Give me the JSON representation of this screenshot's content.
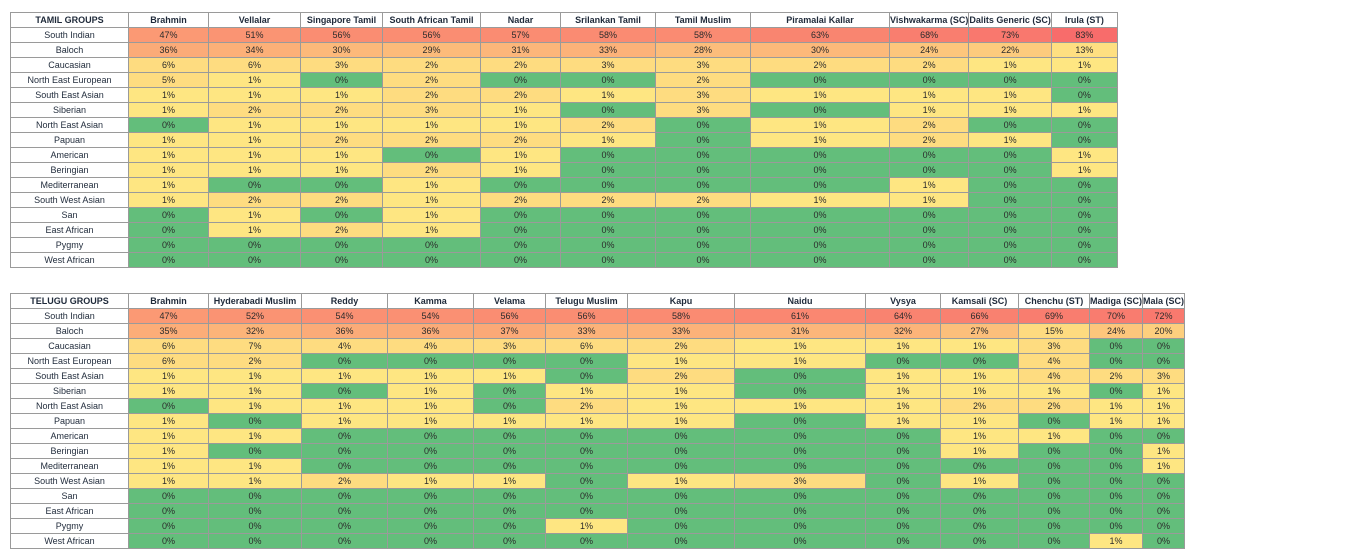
{
  "tamil": {
    "title": "TAMIL GROUPS",
    "columns": [
      "Brahmin",
      "Vellalar",
      "Singapore Tamil",
      "South African Tamil",
      "Nadar",
      "Srilankan Tamil",
      "Tamil Muslim",
      "Piramalai Kallar",
      "Vishwakarma (SC)",
      "Dalits Generic (SC)",
      "Irula (ST)"
    ],
    "rows": [
      {
        "label": "South Indian",
        "values": [
          "47%",
          "51%",
          "56%",
          "56%",
          "57%",
          "58%",
          "58%",
          "63%",
          "68%",
          "73%",
          "83%"
        ]
      },
      {
        "label": "Baloch",
        "values": [
          "36%",
          "34%",
          "30%",
          "29%",
          "31%",
          "33%",
          "28%",
          "30%",
          "24%",
          "22%",
          "13%"
        ]
      },
      {
        "label": "Caucasian",
        "values": [
          "6%",
          "6%",
          "3%",
          "2%",
          "2%",
          "3%",
          "3%",
          "2%",
          "2%",
          "1%",
          "1%"
        ]
      },
      {
        "label": "North East European",
        "values": [
          "5%",
          "1%",
          "0%",
          "2%",
          "0%",
          "0%",
          "2%",
          "0%",
          "0%",
          "0%",
          "0%"
        ]
      },
      {
        "label": "South East Asian",
        "values": [
          "1%",
          "1%",
          "1%",
          "2%",
          "2%",
          "1%",
          "3%",
          "1%",
          "1%",
          "1%",
          "0%"
        ]
      },
      {
        "label": "Siberian",
        "values": [
          "1%",
          "2%",
          "2%",
          "3%",
          "1%",
          "0%",
          "3%",
          "0%",
          "1%",
          "1%",
          "1%"
        ]
      },
      {
        "label": "North East Asian",
        "values": [
          "0%",
          "1%",
          "1%",
          "1%",
          "1%",
          "2%",
          "0%",
          "1%",
          "2%",
          "0%",
          "0%"
        ]
      },
      {
        "label": "Papuan",
        "values": [
          "1%",
          "1%",
          "2%",
          "2%",
          "2%",
          "1%",
          "0%",
          "1%",
          "2%",
          "1%",
          "0%"
        ]
      },
      {
        "label": "American",
        "values": [
          "1%",
          "1%",
          "1%",
          "0%",
          "1%",
          "0%",
          "0%",
          "0%",
          "0%",
          "0%",
          "1%"
        ]
      },
      {
        "label": "Beringian",
        "values": [
          "1%",
          "1%",
          "1%",
          "2%",
          "1%",
          "0%",
          "0%",
          "0%",
          "0%",
          "0%",
          "1%"
        ]
      },
      {
        "label": "Mediterranean",
        "values": [
          "1%",
          "0%",
          "0%",
          "1%",
          "0%",
          "0%",
          "0%",
          "0%",
          "1%",
          "0%",
          "0%"
        ]
      },
      {
        "label": "South West Asian",
        "values": [
          "1%",
          "2%",
          "2%",
          "1%",
          "2%",
          "2%",
          "2%",
          "1%",
          "1%",
          "0%",
          "0%"
        ]
      },
      {
        "label": "San",
        "values": [
          "0%",
          "1%",
          "0%",
          "1%",
          "0%",
          "0%",
          "0%",
          "0%",
          "0%",
          "0%",
          "0%"
        ]
      },
      {
        "label": "East African",
        "values": [
          "0%",
          "1%",
          "2%",
          "1%",
          "0%",
          "0%",
          "0%",
          "0%",
          "0%",
          "0%",
          "0%"
        ]
      },
      {
        "label": "Pygmy",
        "values": [
          "0%",
          "0%",
          "0%",
          "0%",
          "0%",
          "0%",
          "0%",
          "0%",
          "0%",
          "0%",
          "0%"
        ]
      },
      {
        "label": "West African",
        "values": [
          "0%",
          "0%",
          "0%",
          "0%",
          "0%",
          "0%",
          "0%",
          "0%",
          "0%",
          "0%",
          "0%"
        ]
      }
    ]
  },
  "telugu": {
    "title": "TELUGU GROUPS",
    "columns": [
      "Brahmin",
      "Hyderabadi Muslim",
      "Reddy",
      "Kamma",
      "Velama",
      "Telugu Muslim",
      "Kapu",
      "Naidu",
      "Vysya",
      "Kamsali (SC)",
      "Chenchu (ST)",
      "Madiga (SC)",
      "Mala (SC)"
    ],
    "rows": [
      {
        "label": "South Indian",
        "values": [
          "47%",
          "52%",
          "54%",
          "54%",
          "56%",
          "56%",
          "58%",
          "61%",
          "64%",
          "66%",
          "69%",
          "70%",
          "72%"
        ]
      },
      {
        "label": "Baloch",
        "values": [
          "35%",
          "32%",
          "36%",
          "36%",
          "37%",
          "33%",
          "33%",
          "31%",
          "32%",
          "27%",
          "15%",
          "24%",
          "20%"
        ]
      },
      {
        "label": "Caucasian",
        "values": [
          "6%",
          "7%",
          "4%",
          "4%",
          "3%",
          "6%",
          "2%",
          "1%",
          "1%",
          "1%",
          "3%",
          "0%",
          "0%"
        ]
      },
      {
        "label": "North East European",
        "values": [
          "6%",
          "2%",
          "0%",
          "0%",
          "0%",
          "0%",
          "1%",
          "1%",
          "0%",
          "0%",
          "4%",
          "0%",
          "0%"
        ]
      },
      {
        "label": "South East Asian",
        "values": [
          "1%",
          "1%",
          "1%",
          "1%",
          "1%",
          "0%",
          "2%",
          "0%",
          "1%",
          "1%",
          "4%",
          "2%",
          "3%"
        ]
      },
      {
        "label": "Siberian",
        "values": [
          "1%",
          "1%",
          "0%",
          "1%",
          "0%",
          "1%",
          "1%",
          "0%",
          "1%",
          "1%",
          "1%",
          "0%",
          "1%"
        ]
      },
      {
        "label": "North East Asian",
        "values": [
          "0%",
          "1%",
          "1%",
          "1%",
          "0%",
          "2%",
          "1%",
          "1%",
          "1%",
          "2%",
          "2%",
          "1%",
          "1%"
        ]
      },
      {
        "label": "Papuan",
        "values": [
          "1%",
          "0%",
          "1%",
          "1%",
          "1%",
          "1%",
          "1%",
          "0%",
          "1%",
          "1%",
          "0%",
          "1%",
          "1%"
        ]
      },
      {
        "label": "American",
        "values": [
          "1%",
          "1%",
          "0%",
          "0%",
          "0%",
          "0%",
          "0%",
          "0%",
          "0%",
          "1%",
          "1%",
          "0%",
          "0%"
        ]
      },
      {
        "label": "Beringian",
        "values": [
          "1%",
          "0%",
          "0%",
          "0%",
          "0%",
          "0%",
          "0%",
          "0%",
          "0%",
          "1%",
          "0%",
          "0%",
          "1%"
        ]
      },
      {
        "label": "Mediterranean",
        "values": [
          "1%",
          "1%",
          "0%",
          "0%",
          "0%",
          "0%",
          "0%",
          "0%",
          "0%",
          "0%",
          "0%",
          "0%",
          "1%"
        ]
      },
      {
        "label": "South West Asian",
        "values": [
          "1%",
          "1%",
          "2%",
          "1%",
          "1%",
          "0%",
          "1%",
          "3%",
          "0%",
          "1%",
          "0%",
          "0%",
          "0%"
        ]
      },
      {
        "label": "San",
        "values": [
          "0%",
          "0%",
          "0%",
          "0%",
          "0%",
          "0%",
          "0%",
          "0%",
          "0%",
          "0%",
          "0%",
          "0%",
          "0%"
        ]
      },
      {
        "label": "East African",
        "values": [
          "0%",
          "0%",
          "0%",
          "0%",
          "0%",
          "0%",
          "0%",
          "0%",
          "0%",
          "0%",
          "0%",
          "0%",
          "0%"
        ]
      },
      {
        "label": "Pygmy",
        "values": [
          "0%",
          "0%",
          "0%",
          "0%",
          "0%",
          "1%",
          "0%",
          "0%",
          "0%",
          "0%",
          "0%",
          "0%",
          "0%"
        ]
      },
      {
        "label": "West African",
        "values": [
          "0%",
          "0%",
          "0%",
          "0%",
          "0%",
          "0%",
          "0%",
          "0%",
          "0%",
          "0%",
          "0%",
          "1%",
          "0%"
        ]
      }
    ]
  },
  "colors": {
    "zero": "#63be7b",
    "one": "#fee682",
    "two": "#fedc80",
    "high": "#f8696b",
    "mid": "#fba276",
    "border": "#9a9a9a"
  }
}
